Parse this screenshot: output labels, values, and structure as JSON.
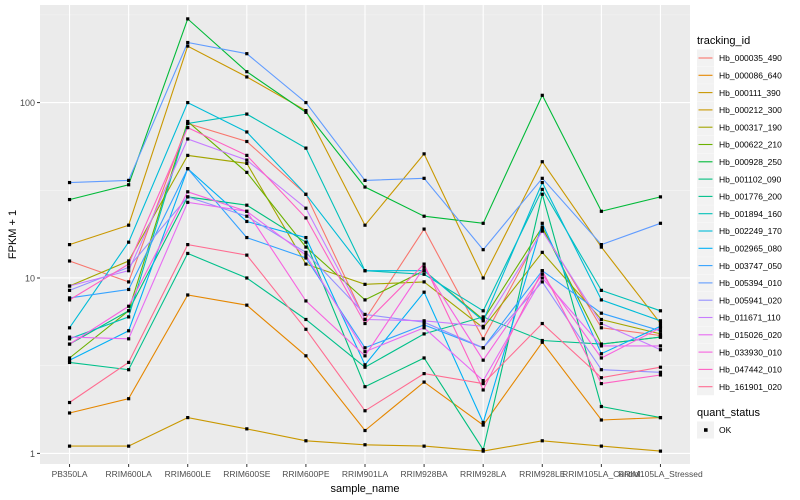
{
  "chart_data": {
    "type": "line",
    "xlabel": "sample_name",
    "ylabel": "FPKM + 1",
    "y_scale": "log10",
    "ylim": [
      0.87,
      360
    ],
    "y_ticks": [
      1,
      10,
      100
    ],
    "y_tick_labels": [
      "1",
      "10",
      "100"
    ],
    "grid": true,
    "legend_position": "right",
    "categories": [
      "PB350LA",
      "RRIM600LA",
      "RRIM600LE",
      "RRIM600SE",
      "RRIM600PE",
      "RRIM901LA",
      "RRIM928BA",
      "RRIM928LA",
      "RRIM928LE",
      "RRIM105LA_Control",
      "RRIM105LA_Stressed"
    ],
    "legend_title": "tracking_id",
    "series": [
      {
        "name": "Hb_000035_490",
        "color": "#F8766D",
        "values": [
          12.5,
          9.5,
          76,
          60,
          30,
          5.8,
          19,
          4.5,
          19,
          5.2,
          4.7
        ]
      },
      {
        "name": "Hb_000086_640",
        "color": "#E58700",
        "values": [
          1.7,
          2.05,
          8.0,
          7.0,
          3.6,
          1.35,
          2.55,
          1.45,
          4.3,
          1.55,
          1.6
        ]
      },
      {
        "name": "Hb_000111_390",
        "color": "#C99800",
        "values": [
          1.1,
          1.1,
          1.6,
          1.38,
          1.18,
          1.12,
          1.1,
          1.03,
          1.18,
          1.1,
          1.03
        ]
      },
      {
        "name": "Hb_000212_300",
        "color": "#C99800",
        "values": [
          15.5,
          20,
          210,
          140,
          90,
          20,
          51,
          10,
          46,
          15,
          5.5
        ]
      },
      {
        "name": "Hb_000317_190",
        "color": "#A3A500",
        "values": [
          9.0,
          12.5,
          50,
          45,
          12,
          9.2,
          9.5,
          5.2,
          14,
          5.8,
          4.8
        ]
      },
      {
        "name": "Hb_000622_210",
        "color": "#6BB100",
        "values": [
          3.5,
          6.5,
          78,
          40,
          15,
          7.5,
          11,
          5.8,
          19.5,
          4.2,
          4.6
        ]
      },
      {
        "name": "Hb_000928_250",
        "color": "#00BA38",
        "values": [
          28,
          34,
          300,
          150,
          88,
          33,
          22.5,
          20.5,
          110,
          24,
          29
        ]
      },
      {
        "name": "Hb_001102_090",
        "color": "#00BF7D",
        "values": [
          4.2,
          6.5,
          29,
          26,
          16,
          2.4,
          3.5,
          1.05,
          30,
          1.85,
          1.6
        ]
      },
      {
        "name": "Hb_001776_200",
        "color": "#00C08B",
        "values": [
          3.3,
          3.0,
          13.8,
          10,
          5.8,
          3.1,
          4.8,
          6.0,
          4.4,
          4.2,
          4.6
        ]
      },
      {
        "name": "Hb_001894_160",
        "color": "#00C0B8",
        "values": [
          4.5,
          6.0,
          76,
          86,
          55,
          11,
          10.5,
          6.5,
          32,
          8.5,
          6.5
        ]
      },
      {
        "name": "Hb_002249_170",
        "color": "#00BCD8",
        "values": [
          5.2,
          16,
          100,
          68,
          30,
          11,
          11,
          5.7,
          35,
          7.5,
          5.7
        ]
      },
      {
        "name": "Hb_002965_080",
        "color": "#00B0F6",
        "values": [
          3.4,
          5.0,
          42,
          21,
          17,
          3.2,
          8.3,
          1.5,
          20.5,
          3.7,
          5.3
        ]
      },
      {
        "name": "Hb_003747_050",
        "color": "#35A2FF",
        "values": [
          7.7,
          8.6,
          42,
          17,
          13,
          4.0,
          5.4,
          4.0,
          11,
          6.3,
          5.0
        ]
      },
      {
        "name": "Hb_005394_010",
        "color": "#619CFF",
        "values": [
          35,
          36,
          220,
          190,
          100,
          36,
          37,
          14.5,
          37,
          15.5,
          20.5
        ]
      },
      {
        "name": "Hb_005941_020",
        "color": "#9590FF",
        "values": [
          8.5,
          11.5,
          29,
          22.5,
          14,
          6.2,
          5.6,
          4.0,
          9.5,
          3.0,
          2.9
        ]
      },
      {
        "name": "Hb_011671_110",
        "color": "#C77CFF",
        "values": [
          9.0,
          11,
          62,
          47,
          25,
          5.8,
          5.7,
          5.3,
          18.5,
          5.5,
          3.9
        ]
      },
      {
        "name": "Hb_015026_020",
        "color": "#E76BF3",
        "values": [
          4.6,
          4.5,
          27,
          24,
          13.5,
          3.8,
          5.2,
          2.6,
          10,
          4.1,
          4.1
        ]
      },
      {
        "name": "Hb_033930_010",
        "color": "#F763E0",
        "values": [
          4.2,
          6.9,
          31,
          24,
          7.4,
          3.6,
          11.5,
          3.4,
          10.5,
          3.5,
          5.2
        ]
      },
      {
        "name": "Hb_047442_010",
        "color": "#FF61C3",
        "values": [
          7.5,
          12,
          72,
          50,
          22,
          5.5,
          12,
          2.3,
          11,
          2.5,
          2.8
        ]
      },
      {
        "name": "Hb_161901_020",
        "color": "#FF6C91",
        "values": [
          1.95,
          3.3,
          15.5,
          13.5,
          5.1,
          1.75,
          2.85,
          2.5,
          5.5,
          2.7,
          3.1
        ]
      }
    ],
    "secondary_legend_title": "quant_status",
    "secondary_legend_items": [
      "OK"
    ]
  }
}
